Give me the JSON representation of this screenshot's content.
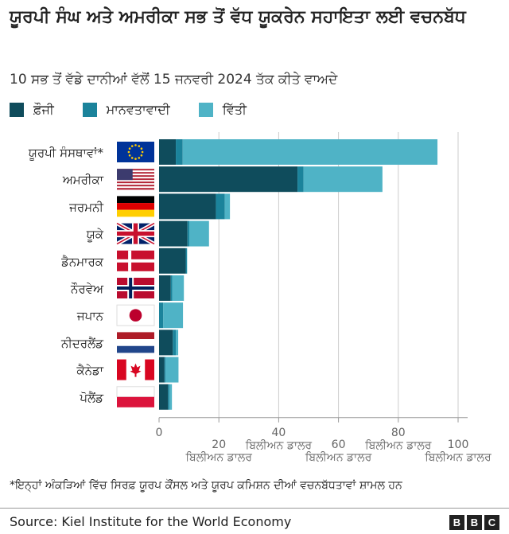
{
  "header": {
    "title": "ਯੂਰਪੀ ਸੰਘ ਅਤੇ ਅਮਰੀਕਾ ਸਭ ਤੋਂ ਵੱਧ ਯੂਕਰੇਨ ਸਹਾਇਤਾ ਲਈ ਵਚਨਬੱਧ",
    "subtitle": "10 ਸਭ ਤੋਂ ਵੱਡੇ ਦਾਨੀਆਂ ਵੱਲੋਂ 15 ਜਨਵਰੀ 2024 ਤੱਕ ਕੀਤੇ ਵਾਅਦੇ"
  },
  "footer": {
    "footnote": "*ਇਨ੍ਹਾਂ ਅੰਕੜਿਆਂ ਵਿੱਚ ਸਿਰਫ਼ ਯੂਰਪ ਕੌਂਸਲ ਅਤੇ ਯੂਰਪ ਕਮਿਸ਼ਨ ਦੀਆਂ ਵਚਨਬੱਧਤਾਵਾਂ ਸ਼ਾਮਲ ਹਨ",
    "source": "Source: Kiel Institute for the World Economy",
    "logo": [
      "B",
      "B",
      "C"
    ]
  },
  "colors": {
    "military": "#0f4c5c",
    "humanitarian": "#1b839b",
    "financial": "#4fb3c6",
    "axis": "#999999",
    "grid": "#cccccc"
  },
  "chart_data": {
    "type": "bar",
    "orientation": "horizontal",
    "stacked": true,
    "categories": [
      "ਯੂਰਪੀ ਸੰਸਥਾਵਾਂ*",
      "ਅਮਰੀਕਾ",
      "ਜਰਮਨੀ",
      "ਯੂਕੇ",
      "ਡੈਨਮਾਰਕ",
      "ਨੌਰਵੇਅ",
      "ਜਪਾਨ",
      "ਨੀਦਰਲੈਂਡ",
      "ਕੈਨੇਡਾ",
      "ਪੋਲੈਂਡ"
    ],
    "flags": [
      "eu",
      "us",
      "de",
      "uk",
      "dk",
      "no",
      "jp",
      "nl",
      "ca",
      "pl"
    ],
    "series": [
      {
        "name": "ਫ਼ੌਜੀ",
        "color": "#0f4c5c",
        "values": [
          5.6,
          46.3,
          19.0,
          9.5,
          8.9,
          3.9,
          0.0,
          4.6,
          1.8,
          3.0
        ]
      },
      {
        "name": "ਮਾਨਵਤਾਵਾਦੀ",
        "color": "#1b839b",
        "values": [
          2.3,
          2.0,
          3.0,
          0.6,
          0.4,
          0.5,
          1.4,
          1.0,
          0.4,
          0.5
        ]
      },
      {
        "name": "ਵਿੱਤੀ",
        "color": "#4fb3c6",
        "values": [
          85.2,
          26.4,
          1.7,
          6.6,
          0.1,
          3.9,
          6.6,
          0.8,
          4.3,
          0.8
        ]
      }
    ],
    "xlim": [
      0,
      100
    ],
    "xticks": [
      0,
      20,
      40,
      60,
      80,
      100
    ],
    "xtick_labels": [
      [
        "0"
      ],
      [
        "ਬਿਲੀਅਨ ਡਾਲਰ",
        "20"
      ],
      [
        "ਬਿਲੀਅਨ ਡਾਲਰ",
        "40"
      ],
      [
        "ਬਿਲੀਅਨ ਡਾਲਰ",
        "60"
      ],
      [
        "ਬਿਲੀਅਨ ਡਾਲਰ",
        "80"
      ],
      [
        "ਬਿਲੀਅਨ ਡਾਲਰ",
        "100"
      ]
    ],
    "xlabel": "",
    "ylabel": "",
    "grid": true,
    "legend": "top-left"
  }
}
